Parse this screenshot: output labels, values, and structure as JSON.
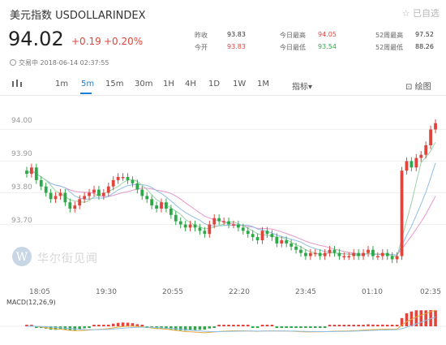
{
  "header": {
    "title": "美元指数  USDOLLARINDEX",
    "selected_label": "☆ 已自选",
    "price": "94.02",
    "change": "+0.19",
    "change_pct": "+0.20%",
    "status_time": "交易中 2018-06-14 02:37:55"
  },
  "quote": {
    "prev_close_label": "昨收",
    "prev_close": "93.83",
    "open_label": "今开",
    "open": "93.83",
    "high_label": "今日最高",
    "high": "94.05",
    "low_label": "今日最低",
    "low": "93.54",
    "wk52_high_label": "52周最高",
    "wk52_high": "97.52",
    "wk52_low_label": "52周最低",
    "wk52_low": "88.26"
  },
  "toolbar": {
    "intervals": [
      "1m",
      "5m",
      "15m",
      "30m",
      "1H",
      "4H",
      "1D",
      "1W",
      "1M"
    ],
    "active_interval": "5m",
    "indicator_label": "指标",
    "draw_label": "绘图"
  },
  "watermark": {
    "text": "华尔街见闻"
  },
  "chart_data": [
    {
      "type": "candlestick",
      "ylim": [
        93.55,
        94.05
      ],
      "y_ticks": [
        "94.00",
        "93.90",
        "93.80",
        "93.70"
      ],
      "x_ticks": [
        "18:05",
        "19:30",
        "20:55",
        "22:20",
        "23:45",
        "01:10",
        "02:35"
      ],
      "approx_close_series": [
        93.86,
        93.88,
        93.84,
        93.82,
        93.8,
        93.78,
        93.79,
        93.8,
        93.77,
        93.75,
        93.76,
        93.78,
        93.79,
        93.8,
        93.81,
        93.79,
        93.8,
        93.82,
        93.84,
        93.85,
        93.85,
        93.84,
        93.83,
        93.81,
        93.79,
        93.78,
        93.76,
        93.75,
        93.77,
        93.75,
        93.73,
        93.71,
        93.7,
        93.69,
        93.7,
        93.69,
        93.68,
        93.67,
        93.7,
        93.72,
        93.71,
        93.71,
        93.7,
        93.7,
        93.69,
        93.68,
        93.67,
        93.66,
        93.65,
        93.68,
        93.67,
        93.66,
        93.64,
        93.65,
        93.64,
        93.63,
        93.62,
        93.61,
        93.6,
        93.61,
        93.61,
        93.6,
        93.61,
        93.62,
        93.61,
        93.6,
        93.6,
        93.6,
        93.61,
        93.6,
        93.61,
        93.62,
        93.6,
        93.6,
        93.61,
        93.6,
        93.59,
        93.6,
        93.87,
        93.9,
        93.88,
        93.91,
        93.92,
        93.95,
        94.0,
        94.02
      ],
      "series": [
        {
          "name": "",
          "color": "#e597c8"
        },
        {
          "name": "",
          "color": "#8fbfe8"
        },
        {
          "name": "",
          "color": "#9ad3a5"
        }
      ],
      "colors": {
        "up": "#e0453d",
        "down": "#2fa84a"
      }
    },
    {
      "type": "bar",
      "label": "MACD(12,26,9)",
      "approx_hist_sign": "mostly negative (green) then positive (red) at end"
    }
  ]
}
